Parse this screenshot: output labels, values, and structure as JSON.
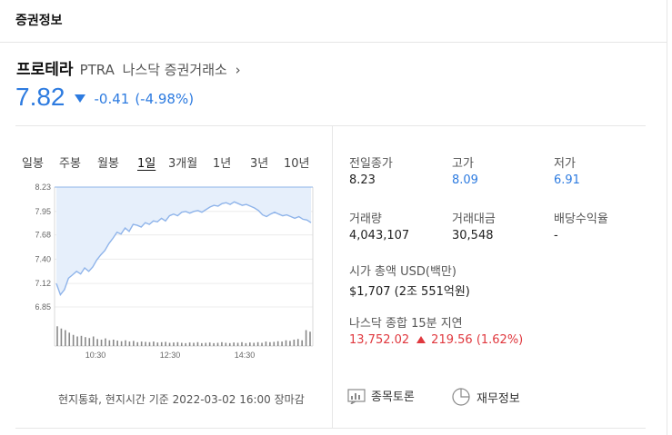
{
  "header": {
    "title": "증권정보"
  },
  "stock": {
    "name": "프로테라",
    "ticker": "PTRA",
    "exchange": "나스닥 증권거래소",
    "chevron": "›",
    "price": "7.82",
    "change": "-0.41",
    "change_pct": "(-4.98%)",
    "direction": "down",
    "down_color": "#2d7be0"
  },
  "tabs": [
    {
      "label": "일봉"
    },
    {
      "label": "주봉"
    },
    {
      "label": "월봉"
    },
    {
      "label": "1일",
      "active": true
    },
    {
      "label": "3개월"
    },
    {
      "label": "1년"
    },
    {
      "label": "3년"
    },
    {
      "label": "10년"
    }
  ],
  "chart_data": {
    "type": "area",
    "y_ticks": [
      "8.23",
      "7.95",
      "7.68",
      "7.40",
      "7.12",
      "6.85"
    ],
    "x_ticks": [
      "10:30",
      "12:30",
      "14:30"
    ],
    "ylim": [
      6.85,
      8.23
    ],
    "prev_close": 8.23,
    "series": [
      {
        "values": [
          7.12,
          6.99,
          7.05,
          7.18,
          7.22,
          7.26,
          7.23,
          7.3,
          7.26,
          7.31,
          7.39,
          7.45,
          7.5,
          7.58,
          7.64,
          7.71,
          7.69,
          7.76,
          7.72,
          7.8,
          7.79,
          7.77,
          7.82,
          7.8,
          7.84,
          7.83,
          7.87,
          7.84,
          7.9,
          7.92,
          7.9,
          7.94,
          7.95,
          7.93,
          7.95,
          7.96,
          7.94,
          7.97,
          8.0,
          8.02,
          8.01,
          8.04,
          8.05,
          8.03,
          8.06,
          8.04,
          8.02,
          8.03,
          8.01,
          7.99,
          7.96,
          7.91,
          7.89,
          7.92,
          7.94,
          7.92,
          7.9,
          7.91,
          7.89,
          7.87,
          7.89,
          7.86,
          7.85,
          7.82
        ]
      }
    ],
    "volume": [
      0.62,
      0.55,
      0.5,
      0.42,
      0.35,
      0.3,
      0.32,
      0.28,
      0.25,
      0.3,
      0.22,
      0.2,
      0.24,
      0.18,
      0.2,
      0.17,
      0.15,
      0.18,
      0.14,
      0.16,
      0.12,
      0.14,
      0.13,
      0.12,
      0.14,
      0.11,
      0.12,
      0.13,
      0.1,
      0.11,
      0.12,
      0.1,
      0.09,
      0.11,
      0.1,
      0.12,
      0.09,
      0.1,
      0.11,
      0.09,
      0.1,
      0.12,
      0.1,
      0.09,
      0.11,
      0.1,
      0.12,
      0.09,
      0.11,
      0.1,
      0.12,
      0.1,
      0.14,
      0.12,
      0.13,
      0.15,
      0.14,
      0.18,
      0.16,
      0.2,
      0.22,
      0.18,
      0.5,
      0.45
    ],
    "line_color": "#8fb4ea",
    "fill_color": "#e6effb"
  },
  "footnote": "현지통화, 현지시간 기준 2022-03-02 16:00 장마감",
  "info": {
    "prev_close": {
      "label": "전일종가",
      "value": "8.23"
    },
    "high": {
      "label": "고가",
      "value": "8.09"
    },
    "low": {
      "label": "저가",
      "value": "6.91"
    },
    "volume": {
      "label": "거래량",
      "value": "4,043,107"
    },
    "trade_value": {
      "label": "거래대금",
      "value": "30,548"
    },
    "dividend": {
      "label": "배당수익율",
      "value": "-"
    },
    "market_cap": {
      "label": "시가 총액 USD(백만)",
      "value": "$1,707 (2조 551억원)"
    },
    "index": {
      "label": "나스닥 종합 15분 지연",
      "value": "13,752.02",
      "change": "219.56",
      "change_pct": "(1.62%)",
      "up_color": "#e0383e"
    }
  },
  "links": {
    "discussion": {
      "label": "종목토론",
      "icon": "chart-board-icon"
    },
    "financials": {
      "label": "재무정보",
      "icon": "pie-chart-icon"
    }
  }
}
